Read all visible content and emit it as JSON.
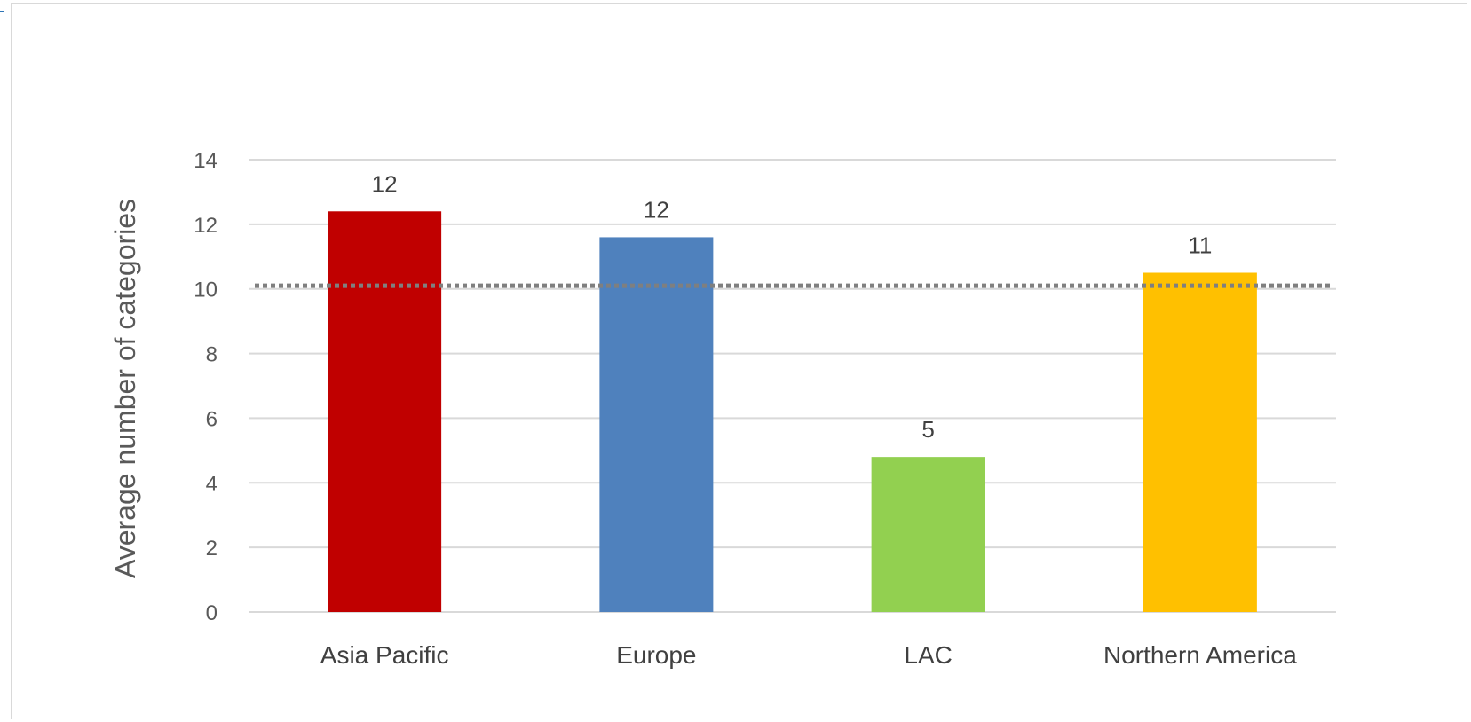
{
  "chart_data": {
    "type": "bar",
    "categories": [
      "Asia Pacific",
      "Europe",
      "LAC",
      "Northern America"
    ],
    "values": [
      12.4,
      11.6,
      4.8,
      10.5
    ],
    "data_labels": [
      "12",
      "12",
      "5",
      "11"
    ],
    "colors": [
      "#c00000",
      "#4f81bd",
      "#92d050",
      "#ffc000"
    ],
    "ylabel": "Average number of categories",
    "ylim": [
      0,
      14
    ],
    "yticks": [
      0,
      2,
      4,
      6,
      8,
      10,
      12,
      14
    ],
    "reference_line": {
      "value": 10.1,
      "style": "dotted",
      "color": "#7f7f7f"
    },
    "grid": true,
    "legend": "none"
  }
}
